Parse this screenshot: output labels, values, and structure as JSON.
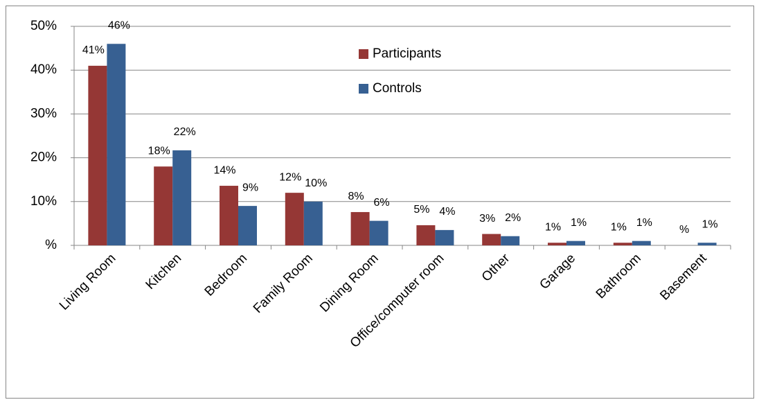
{
  "chart_data": {
    "type": "bar",
    "categories": [
      "Living Room",
      "Kitchen",
      "Bedroom",
      "Family Room",
      "Dining Room",
      "Office/computer room",
      "Other",
      "Garage",
      "Bathroom",
      "Basement"
    ],
    "series": [
      {
        "name": "Participants",
        "color": "#953735",
        "values": [
          41,
          18,
          13.6,
          12,
          7.6,
          4.6,
          2.6,
          0.6,
          0.6,
          0
        ],
        "value_labels": [
          "41%",
          "18%",
          "14%",
          "12%",
          "8%",
          "5%",
          "3%",
          "1%",
          "1%",
          "%"
        ]
      },
      {
        "name": "Controls",
        "color": "#376092",
        "values": [
          46,
          21.7,
          9,
          10,
          5.6,
          3.5,
          2.1,
          1,
          1,
          0.6
        ],
        "value_labels": [
          "46%",
          "22%",
          "9%",
          "10%",
          "6%",
          "4%",
          "2%",
          "1%",
          "1%",
          "1%"
        ]
      }
    ],
    "ylim": [
      0,
      50
    ],
    "yticks": [
      {
        "value": 0,
        "label": "%"
      },
      {
        "value": 10,
        "label": "10%"
      },
      {
        "value": 20,
        "label": "20%"
      },
      {
        "value": 30,
        "label": "30%"
      },
      {
        "value": 40,
        "label": "40%"
      },
      {
        "value": 50,
        "label": "50%"
      }
    ],
    "grid": true,
    "legend": "upper-center"
  }
}
